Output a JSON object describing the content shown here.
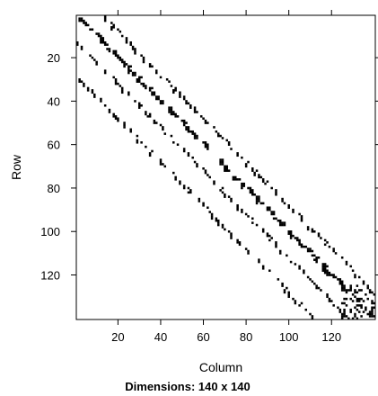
{
  "chart_data": {
    "type": "heatmap",
    "xlabel": "Column",
    "ylabel": "Row",
    "caption": "Dimensions: 140 x 140",
    "dimensions": {
      "rows": 140,
      "cols": 140
    },
    "xlim": [
      0.5,
      140.5
    ],
    "ylim": [
      0.5,
      140.5
    ],
    "y_reversed": true,
    "x_ticks": [
      20,
      40,
      60,
      80,
      100,
      120
    ],
    "y_ticks": [
      20,
      40,
      60,
      80,
      100,
      120
    ],
    "x_top_ticks": [
      20,
      40,
      60,
      80,
      100,
      120
    ],
    "y_right_ticks": [
      20,
      40,
      60,
      80,
      100,
      120
    ],
    "cell_color": "#000000",
    "nonzero_bands": [
      {
        "name": "main-diagonal",
        "offset": 0,
        "thickness": 2
      },
      {
        "name": "upper-band",
        "offset": 12,
        "thickness": 1
      },
      {
        "name": "lower-band-1",
        "offset": -12,
        "thickness": 1
      },
      {
        "name": "lower-band-2",
        "offset": -28,
        "thickness": 1
      }
    ]
  }
}
